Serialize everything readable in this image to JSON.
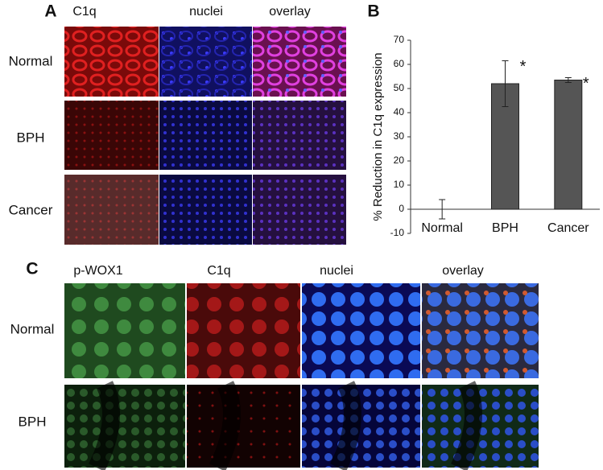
{
  "panel_a": {
    "label": "A",
    "columns": [
      "C1q",
      "nuclei",
      "overlay"
    ],
    "rows": [
      "Normal",
      "BPH",
      "Cancer"
    ]
  },
  "chart_data": {
    "type": "bar",
    "panel_label": "B",
    "ylabel": "% Reduction in C1q expression",
    "categories": [
      "Normal",
      "BPH",
      "Cancer"
    ],
    "values": [
      0,
      52,
      53.5
    ],
    "errors": [
      4,
      9.5,
      1
    ],
    "significance": [
      null,
      "*",
      "*"
    ],
    "color": "#555555",
    "ylim": [
      -10,
      70
    ],
    "yticks": [
      -10,
      0,
      10,
      20,
      30,
      40,
      50,
      60,
      70
    ]
  },
  "panel_c": {
    "label": "C",
    "columns": [
      "p-WOX1",
      "C1q",
      "nuclei",
      "overlay"
    ],
    "rows": [
      "Normal",
      "BPH"
    ]
  }
}
